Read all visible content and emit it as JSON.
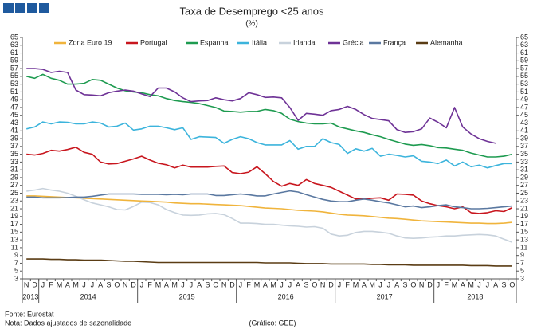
{
  "chart_data": {
    "type": "line",
    "title": "Taxa de Desemprego <25 anos",
    "subtitle": "(%)",
    "year_groups": [
      {
        "label": "2013",
        "months": [
          "N",
          "D"
        ]
      },
      {
        "label": "2014",
        "months": [
          "J",
          "F",
          "M",
          "A",
          "M",
          "J",
          "J",
          "A",
          "S",
          "O",
          "N",
          "D"
        ]
      },
      {
        "label": "2015",
        "months": [
          "J",
          "F",
          "M",
          "A",
          "M",
          "J",
          "J",
          "A",
          "S",
          "O",
          "N",
          "D"
        ]
      },
      {
        "label": "2016",
        "months": [
          "J",
          "F",
          "M",
          "A",
          "M",
          "J",
          "J",
          "A",
          "S",
          "O",
          "N",
          "D"
        ]
      },
      {
        "label": "2017",
        "months": [
          "J",
          "F",
          "M",
          "A",
          "M",
          "J",
          "J",
          "A",
          "S",
          "O",
          "N",
          "D"
        ]
      },
      {
        "label": "2018",
        "months": [
          "J",
          "F",
          "M",
          "A",
          "M",
          "J",
          "J",
          "A",
          "S",
          "O"
        ]
      }
    ],
    "ylim": [
      3,
      65
    ],
    "yticks": [
      3,
      5,
      7,
      9,
      11,
      13,
      15,
      17,
      19,
      21,
      23,
      25,
      27,
      29,
      31,
      33,
      35,
      37,
      39,
      41,
      43,
      45,
      47,
      49,
      51,
      53,
      55,
      57,
      59,
      61,
      63,
      65
    ],
    "series": [
      {
        "name": "Zona Euro 19",
        "color": "#f0b43c",
        "values": [
          24.3,
          24.3,
          24.2,
          24.1,
          24.0,
          23.9,
          23.8,
          23.7,
          23.6,
          23.5,
          23.4,
          23.3,
          23.2,
          23.1,
          23.0,
          22.9,
          22.8,
          22.7,
          22.5,
          22.4,
          22.3,
          22.3,
          22.2,
          22.1,
          22.0,
          21.9,
          21.8,
          21.6,
          21.4,
          21.2,
          21.1,
          21.0,
          20.8,
          20.6,
          20.5,
          20.4,
          20.2,
          19.9,
          19.6,
          19.4,
          19.3,
          19.2,
          19.0,
          18.8,
          18.6,
          18.5,
          18.3,
          18.1,
          17.9,
          17.8,
          17.7,
          17.6,
          17.5,
          17.4,
          17.3,
          17.3,
          17.2,
          17.2,
          17.3,
          17.5
        ]
      },
      {
        "name": "Portugal",
        "color": "#c8161e",
        "values": [
          35.0,
          34.8,
          35.2,
          36.0,
          35.8,
          36.2,
          36.8,
          35.5,
          35.0,
          33.0,
          32.5,
          32.6,
          33.2,
          33.8,
          34.5,
          33.5,
          32.7,
          32.3,
          31.5,
          32.2,
          31.7,
          31.7,
          31.7,
          31.9,
          32.0,
          30.3,
          30.0,
          30.4,
          31.8,
          30.0,
          28.0,
          26.8,
          27.5,
          27.0,
          28.5,
          27.5,
          27.0,
          26.5,
          25.5,
          24.5,
          23.5,
          23.5,
          23.7,
          23.8,
          23.2,
          24.8,
          24.7,
          24.5,
          23.0,
          22.3,
          21.8,
          21.5,
          21.0,
          21.5,
          20.0,
          19.8,
          20.0,
          20.5,
          20.3,
          21.3
        ]
      },
      {
        "name": "Espanha",
        "color": "#1e9b50",
        "values": [
          55.0,
          54.5,
          55.5,
          54.5,
          54.0,
          53.0,
          53.0,
          53.2,
          54.2,
          54.0,
          53.0,
          52.0,
          51.3,
          51.0,
          50.8,
          50.3,
          50.0,
          49.3,
          48.8,
          48.5,
          48.3,
          48.0,
          47.5,
          47.0,
          46.1,
          46.0,
          45.8,
          46.0,
          46.0,
          46.5,
          46.2,
          45.5,
          44.0,
          43.4,
          43.0,
          42.8,
          42.8,
          43.0,
          42.0,
          41.5,
          41.0,
          40.6,
          40.0,
          39.5,
          38.8,
          38.2,
          37.6,
          37.3,
          37.5,
          37.2,
          36.7,
          36.6,
          36.3,
          36.0,
          35.3,
          34.8,
          34.3,
          34.3,
          34.5,
          35.0
        ]
      },
      {
        "name": "Itália",
        "color": "#3cb4dc",
        "values": [
          41.5,
          42.0,
          43.3,
          42.8,
          43.3,
          43.2,
          42.8,
          42.8,
          43.3,
          43.0,
          42.0,
          42.2,
          43.0,
          41.2,
          41.5,
          42.2,
          42.2,
          41.8,
          41.3,
          41.8,
          38.8,
          39.5,
          39.4,
          39.3,
          37.8,
          38.8,
          39.5,
          39.0,
          38.0,
          37.4,
          37.4,
          37.4,
          38.5,
          36.3,
          37.0,
          37.0,
          39.0,
          38.0,
          37.5,
          35.2,
          36.4,
          35.8,
          36.5,
          34.5,
          35.0,
          34.7,
          34.3,
          34.6,
          33.2,
          33.0,
          32.6,
          33.5,
          32.0,
          33.0,
          31.8,
          32.2,
          31.5,
          32.1,
          32.6,
          32.6
        ]
      },
      {
        "name": "Irlanda",
        "color": "#c8d2dc",
        "values": [
          25.5,
          25.8,
          26.2,
          25.8,
          25.5,
          25.0,
          24.2,
          23.3,
          22.5,
          22.0,
          21.5,
          20.8,
          20.7,
          21.6,
          22.7,
          22.6,
          22.0,
          20.8,
          20.0,
          19.4,
          19.3,
          19.4,
          19.7,
          19.8,
          19.5,
          18.5,
          17.3,
          17.3,
          17.2,
          17.0,
          17.0,
          16.8,
          16.6,
          16.5,
          16.3,
          16.4,
          16.0,
          14.5,
          14.0,
          14.2,
          14.9,
          15.2,
          15.2,
          15.0,
          14.7,
          14.0,
          13.5,
          13.4,
          13.5,
          13.7,
          13.8,
          14.0,
          14.0,
          14.2,
          14.3,
          14.4,
          14.3,
          14.0,
          13.2,
          12.4
        ]
      },
      {
        "name": "Grécia",
        "color": "#6e3296",
        "values": [
          57.0,
          57.0,
          56.8,
          56.0,
          56.3,
          56.0,
          51.5,
          50.3,
          50.2,
          50.0,
          50.8,
          51.2,
          51.5,
          51.2,
          50.5,
          49.8,
          52.0,
          52.0,
          51.0,
          49.5,
          48.5,
          48.7,
          48.8,
          49.5,
          49.0,
          48.7,
          49.3,
          50.8,
          50.3,
          49.6,
          49.7,
          49.5,
          47.0,
          43.7,
          45.5,
          45.3,
          45.0,
          46.2,
          46.5,
          47.3,
          46.5,
          45.2,
          44.2,
          43.9,
          43.6,
          41.3,
          40.6,
          40.8,
          41.5,
          44.3,
          43.2,
          41.8,
          47.0,
          42.0,
          40.2,
          39.0,
          38.3,
          37.8,
          null,
          null
        ]
      },
      {
        "name": "França",
        "color": "#5a78a0",
        "values": [
          24.0,
          24.0,
          23.8,
          23.8,
          23.8,
          23.9,
          24.0,
          24.0,
          24.2,
          24.5,
          24.8,
          24.8,
          24.8,
          24.8,
          24.7,
          24.7,
          24.7,
          24.6,
          24.7,
          24.6,
          24.8,
          24.8,
          24.8,
          24.4,
          24.4,
          24.6,
          24.8,
          24.6,
          24.3,
          24.3,
          24.8,
          25.2,
          25.6,
          25.3,
          24.6,
          24.0,
          23.4,
          23.0,
          22.8,
          22.8,
          23.2,
          23.5,
          23.2,
          22.8,
          22.5,
          22.0,
          21.5,
          21.7,
          21.3,
          21.5,
          21.8,
          22.0,
          21.5,
          21.3,
          21.0,
          21.0,
          21.1,
          21.3,
          21.5,
          21.7
        ]
      },
      {
        "name": "Alemanha",
        "color": "#5a3c14",
        "values": [
          8.1,
          8.1,
          8.1,
          8.0,
          8.0,
          7.9,
          7.9,
          7.8,
          7.8,
          7.8,
          7.7,
          7.6,
          7.5,
          7.5,
          7.4,
          7.3,
          7.2,
          7.2,
          7.2,
          7.2,
          7.2,
          7.2,
          7.2,
          7.2,
          7.2,
          7.2,
          7.2,
          7.2,
          7.2,
          7.1,
          7.1,
          7.1,
          7.1,
          7.0,
          6.9,
          6.9,
          6.9,
          6.8,
          6.8,
          6.8,
          6.8,
          6.8,
          6.7,
          6.7,
          6.6,
          6.6,
          6.6,
          6.5,
          6.5,
          6.5,
          6.5,
          6.5,
          6.5,
          6.5,
          6.4,
          6.4,
          6.4,
          6.3,
          6.3,
          6.3
        ]
      }
    ],
    "legend": "top",
    "source": "Fonte: Eurostat",
    "note": "Nota: Dados ajustados de sazonalidade",
    "credit": "(Gráfico: GEE)"
  }
}
